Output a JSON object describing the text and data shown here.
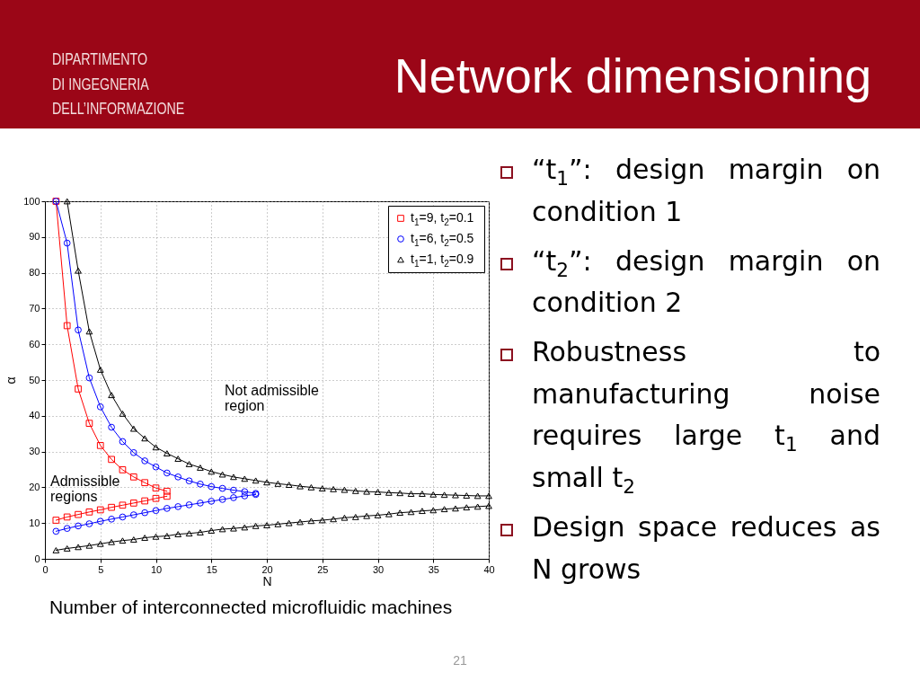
{
  "chart_data": {
    "type": "line",
    "title": "Network dimensioning",
    "xlabel": "N",
    "ylabel": "α",
    "xlim": [
      0,
      40
    ],
    "xticks": [
      0,
      5,
      10,
      15,
      20,
      25,
      30,
      35,
      40
    ],
    "ylim": [
      0,
      100
    ],
    "yticks": [
      0,
      10,
      20,
      30,
      40,
      50,
      60,
      70,
      80,
      90,
      100
    ],
    "grid": true,
    "legend": "top right",
    "series": [
      {
        "name": "t$_{1}$=9, t$_{2}$=0.1",
        "color": "#ff0000",
        "marker": "square",
        "x": [
          1,
          2,
          3,
          4,
          5,
          6,
          7,
          8,
          9,
          10,
          11
        ],
        "values": [
          100,
          65.2,
          47.5,
          37.9,
          31.7,
          27.8,
          24.9,
          22.9,
          21.3,
          19.8,
          18.9
        ]
      },
      {
        "color": "#ff0000",
        "marker": "square",
        "x": [
          1,
          2,
          3,
          4,
          5,
          6,
          7,
          8,
          9,
          10,
          11
        ],
        "values": [
          10.8,
          11.7,
          12.4,
          13.1,
          13.7,
          14.4,
          15.0,
          15.6,
          16.2,
          16.9,
          17.5
        ]
      },
      {
        "name": "t$_{1}$=6, t$_{2}$=0.5",
        "color": "#0000ff",
        "marker": "circle",
        "x": [
          1,
          2,
          3,
          4,
          5,
          6,
          7,
          8,
          9,
          10,
          11,
          12,
          13,
          14,
          15,
          16,
          17,
          18,
          19
        ],
        "values": [
          100,
          88.3,
          64.0,
          50.6,
          42.5,
          36.8,
          32.8,
          29.7,
          27.4,
          25.7,
          24.0,
          22.9,
          21.8,
          20.9,
          20.2,
          19.7,
          19.2,
          18.8,
          18.3
        ]
      },
      {
        "color": "#0000ff",
        "marker": "circle",
        "x": [
          1,
          2,
          3,
          4,
          5,
          6,
          7,
          8,
          9,
          10,
          11,
          12,
          13,
          14,
          15,
          16,
          17,
          18,
          19
        ],
        "values": [
          7.7,
          8.5,
          9.2,
          9.8,
          10.5,
          11.1,
          11.7,
          12.3,
          12.9,
          13.5,
          14.1,
          14.6,
          15.1,
          15.6,
          16.1,
          16.6,
          17.1,
          17.6,
          18.0
        ]
      },
      {
        "name": "t$_{1}$=1, t$_{2}$=0.9",
        "color": "#000000",
        "marker": "triangle",
        "x": [
          2,
          3,
          4,
          5,
          6,
          7,
          8,
          9,
          10,
          11,
          12,
          13,
          14,
          15,
          16,
          17,
          18,
          19,
          20,
          21,
          22,
          23,
          24,
          25,
          26,
          27,
          28,
          29,
          30,
          31,
          32,
          33,
          34,
          35,
          36,
          37,
          38,
          39,
          40
        ],
        "values": [
          100,
          80.6,
          63.6,
          52.9,
          45.8,
          40.6,
          36.4,
          33.7,
          31.2,
          29.5,
          28.0,
          26.5,
          25.5,
          24.4,
          23.6,
          22.9,
          22.4,
          21.9,
          21.4,
          21.0,
          20.7,
          20.3,
          20.0,
          19.7,
          19.5,
          19.3,
          19.0,
          18.8,
          18.7,
          18.5,
          18.4,
          18.2,
          18.2,
          18.0,
          17.9,
          17.8,
          17.7,
          17.6,
          17.6
        ]
      },
      {
        "color": "#000000",
        "marker": "triangle",
        "x": [
          1,
          2,
          3,
          4,
          5,
          6,
          7,
          8,
          9,
          10,
          11,
          12,
          13,
          14,
          15,
          16,
          17,
          18,
          19,
          20,
          21,
          22,
          23,
          24,
          25,
          26,
          27,
          28,
          29,
          30,
          31,
          32,
          33,
          34,
          35,
          36,
          37,
          38,
          39,
          40
        ],
        "values": [
          2.4,
          2.9,
          3.3,
          3.7,
          4.2,
          4.7,
          5.1,
          5.4,
          5.9,
          6.2,
          6.4,
          6.9,
          7.1,
          7.4,
          7.9,
          8.3,
          8.5,
          8.8,
          9.2,
          9.4,
          9.7,
          10.0,
          10.3,
          10.6,
          10.8,
          11.1,
          11.5,
          11.7,
          12.0,
          12.2,
          12.5,
          12.9,
          13.1,
          13.4,
          13.6,
          13.9,
          14.1,
          14.4,
          14.6,
          14.8
        ]
      }
    ],
    "annotations": [
      "DIPARTIMENTO\nDI INGEGNERIA\nDELL’INFORMAZIONE",
      "“t$_{1}$”: design margin on condition 1",
      "“t$_{2}$”: design margin on condition 2",
      "Robustness to manufacturing noise requires large t$_{1}$ and small t$_{2}$",
      "Design space reduces as N grows",
      "Number of interconnected microfluidic machines",
      "21",
      "Not admissible\nregion",
      "Admissible\nregions"
    ]
  }
}
